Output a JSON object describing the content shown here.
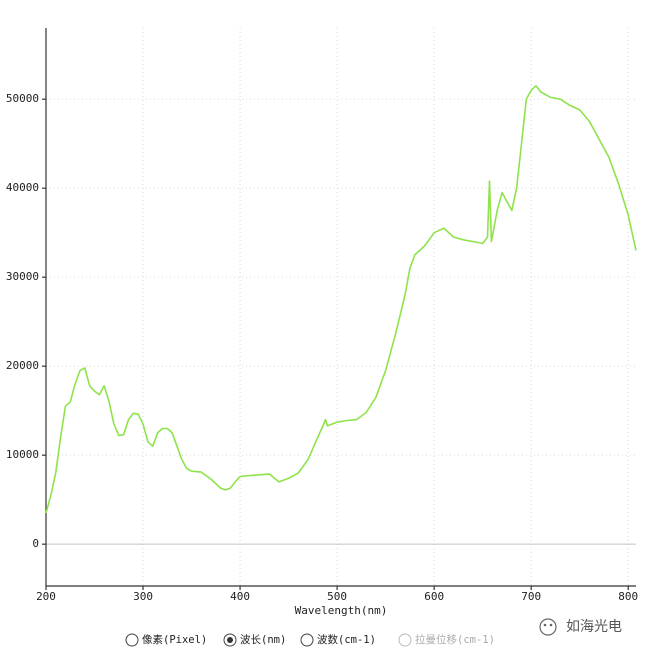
{
  "chart_data": {
    "type": "line",
    "x_label": "Wavelength(nm)",
    "x": [
      200,
      205,
      210,
      215,
      220,
      225,
      230,
      235,
      240,
      245,
      250,
      255,
      260,
      265,
      270,
      275,
      280,
      285,
      290,
      295,
      300,
      305,
      310,
      315,
      320,
      325,
      330,
      335,
      340,
      345,
      350,
      360,
      370,
      380,
      385,
      390,
      395,
      400,
      410,
      420,
      430,
      440,
      450,
      460,
      470,
      480,
      485,
      488,
      490,
      500,
      510,
      520,
      530,
      540,
      550,
      560,
      570,
      575,
      580,
      590,
      600,
      610,
      620,
      630,
      640,
      650,
      655,
      657,
      659,
      665,
      670,
      675,
      680,
      685,
      690,
      695,
      700,
      705,
      710,
      720,
      730,
      740,
      750,
      760,
      770,
      780,
      790,
      800,
      808
    ],
    "series": [
      {
        "color": "#8fe34a",
        "values": [
          3500,
          5500,
          8000,
          12000,
          15500,
          16000,
          18000,
          19500,
          19800,
          17800,
          17200,
          16800,
          17800,
          16000,
          13500,
          12200,
          12300,
          14000,
          14700,
          14600,
          13500,
          11500,
          11000,
          12500,
          13000,
          13000,
          12500,
          11000,
          9500,
          8500,
          8200,
          8100,
          7300,
          6300,
          6100,
          6300,
          7000,
          7600,
          7700,
          7800,
          7900,
          7000,
          7400,
          8000,
          9500,
          12000,
          13200,
          14000,
          13300,
          13700,
          13900,
          14000,
          14800,
          16500,
          19500,
          23500,
          28000,
          31000,
          32500,
          33500,
          35000,
          35500,
          34500,
          34200,
          34000,
          33800,
          34500,
          40800,
          34000,
          37500,
          39500,
          38500,
          37500,
          40000,
          45000,
          50000,
          51000,
          51500,
          50800,
          50200,
          50000,
          49300,
          48800,
          47500,
          45500,
          43500,
          40500,
          37000,
          33000
        ]
      }
    ],
    "xlim": [
      200,
      808
    ],
    "ylim": [
      -4700,
      58000
    ],
    "xticks": [
      200,
      300,
      400,
      500,
      600,
      700,
      800
    ],
    "yticks": [
      0,
      10000,
      20000,
      30000,
      40000,
      50000
    ],
    "grid": true
  },
  "controls": {
    "options": [
      "像素(Pixel)",
      "波长(nm)",
      "波数(cm-1)",
      "拉曼位移(cm-1)"
    ],
    "selected": 1,
    "disabled": 3
  },
  "watermark": "如海光电"
}
